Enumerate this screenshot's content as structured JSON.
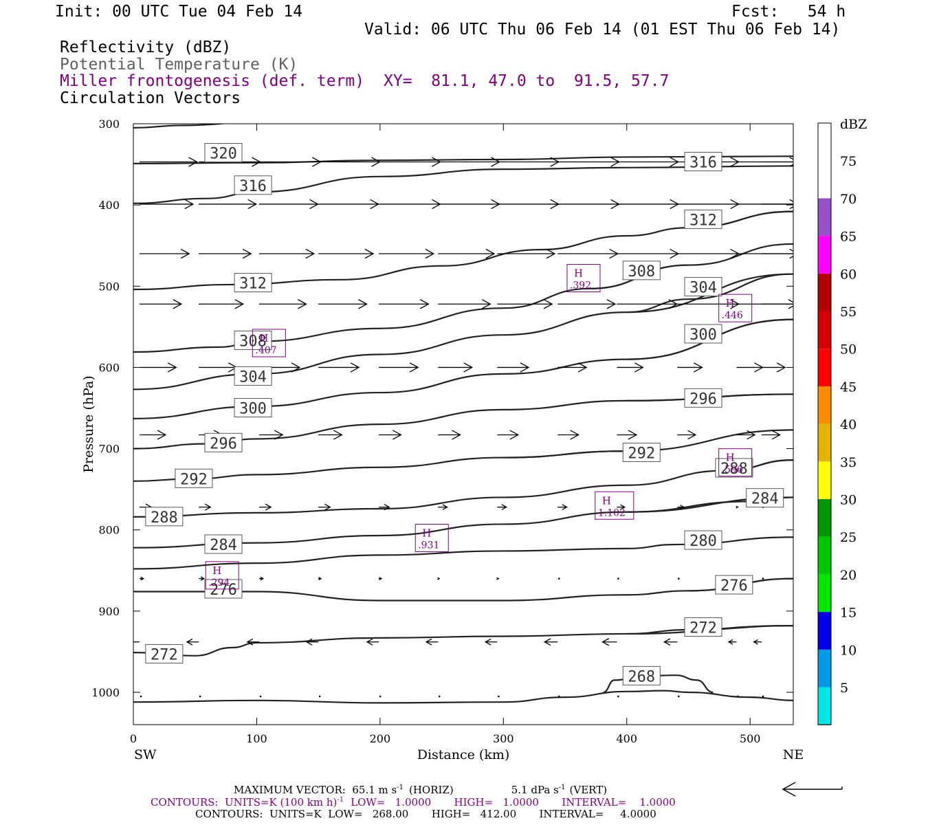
{
  "header": {
    "init": "Init: 00 UTC Tue 04 Feb 14",
    "fcst": "Fcst:   54 h",
    "valid": "Valid: 06 UTC Thu 06 Feb 14 (01 EST Thu 06 Feb 14)",
    "field1": "Reflectivity (dBZ)",
    "field2": "Potential Temperature (K)",
    "field3": "Miller frontogenesis (def. term)",
    "xy": "XY=  81.1, 47.0 to  91.5, 57.7",
    "field4": "Circulation Vectors"
  },
  "footer": {
    "max_vector_pre": "MAXIMUM VECTOR:  65.1 m s",
    "max_vector_hz": "(HORIZ)",
    "vert_pre": "5.1 dPa s",
    "vert_suf": "(VERT)",
    "sup": "-1",
    "contours1_pre": "CONTOURS:  UNITS=K (100 km h)",
    "contours1_post": "LOW=   1.0000       HIGH=   1.0000       INTERVAL=    1.0000",
    "contours2": "CONTOURS:  UNITS=K  LOW=   268.00       HIGH=   412.00       INTERVAL=     4.0000"
  },
  "colors": {
    "purple": "#800080",
    "contour": "#222222",
    "vector": "#000000"
  },
  "chart_data": {
    "type": "cross-section",
    "xlabel": "Distance (km)",
    "ylabel": "Pressure (hPa)",
    "xlim": [
      0,
      535
    ],
    "ylim": [
      1040,
      300
    ],
    "x_ticks": [
      0,
      100,
      200,
      300,
      400,
      500
    ],
    "y_ticks": [
      300,
      400,
      500,
      600,
      700,
      800,
      900,
      1000
    ],
    "left_end": "SW",
    "right_end": "NE",
    "colorbar": {
      "title": "dBZ",
      "labels": [
        "5",
        "10",
        "15",
        "20",
        "25",
        "30",
        "35",
        "40",
        "45",
        "50",
        "55",
        "60",
        "65",
        "70",
        "75"
      ],
      "colors": [
        "#00e6e6",
        "#0099e6",
        "#0000e6",
        "#00e600",
        "#00c800",
        "#009600",
        "#ffff00",
        "#e6b400",
        "#ff8c00",
        "#ff0000",
        "#d20000",
        "#b40000",
        "#ff00ff",
        "#9650c8",
        "#ffffff"
      ]
    },
    "theta_contours": [
      {
        "label": "320",
        "points": [
          [
            0,
            305
          ],
          [
            40,
            302
          ],
          [
            100,
            298
          ],
          [
            200,
            290
          ],
          [
            300,
            285
          ],
          [
            400,
            284
          ],
          [
            535,
            284
          ]
        ],
        "label_at": [
          73,
          336
        ]
      },
      {
        "label": "316",
        "points": [
          [
            0,
            398
          ],
          [
            60,
            392
          ],
          [
            100,
            384
          ],
          [
            200,
            365
          ],
          [
            300,
            356
          ],
          [
            400,
            354
          ],
          [
            535,
            352
          ]
        ],
        "label_at": [
          97,
          376
        ]
      },
      {
        "label": "316",
        "points": [
          [
            0,
            349
          ],
          [
            100,
            348
          ],
          [
            200,
            345
          ],
          [
            300,
            344
          ],
          [
            400,
            341
          ],
          [
            535,
            340
          ]
        ],
        "label_at": [
          462,
          347
        ]
      },
      {
        "label": "312",
        "points": [
          [
            0,
            504
          ],
          [
            80,
            498
          ],
          [
            168,
            492
          ],
          [
            250,
            475
          ],
          [
            330,
            455
          ],
          [
            400,
            438
          ],
          [
            450,
            428
          ],
          [
            535,
            408
          ]
        ],
        "label_at": [
          97,
          496
        ]
      },
      {
        "label": "312",
        "points": [
          [
            450,
            428
          ],
          [
            535,
            408
          ]
        ],
        "label_at": [
          462,
          418
        ]
      },
      {
        "label": "308",
        "points": [
          [
            0,
            581
          ],
          [
            70,
            575
          ],
          [
            100,
            568
          ],
          [
            200,
            552
          ],
          [
            300,
            527
          ],
          [
            370,
            503
          ],
          [
            450,
            474
          ],
          [
            535,
            448
          ]
        ],
        "label_at": [
          97,
          567
        ]
      },
      {
        "label": "308",
        "points": [
          [
            370,
            503
          ],
          [
            450,
            474
          ]
        ],
        "label_at": [
          412,
          481
        ]
      },
      {
        "label": "304",
        "points": [
          [
            0,
            627
          ],
          [
            100,
            608
          ],
          [
            200,
            584
          ],
          [
            300,
            560
          ],
          [
            400,
            532
          ],
          [
            450,
            516
          ],
          [
            535,
            485
          ]
        ],
        "label_at": [
          97,
          611
        ]
      },
      {
        "label": "304",
        "points": [
          [
            400,
            532
          ],
          [
            535,
            485
          ]
        ],
        "label_at": [
          462,
          501
        ]
      },
      {
        "label": "300",
        "points": [
          [
            0,
            663
          ],
          [
            100,
            648
          ],
          [
            200,
            631
          ],
          [
            300,
            608
          ],
          [
            400,
            590
          ],
          [
            535,
            541
          ]
        ],
        "label_at": [
          97,
          650
        ]
      },
      {
        "label": "300",
        "points": [
          [
            400,
            590
          ],
          [
            535,
            541
          ]
        ],
        "label_at": [
          462,
          559
        ]
      },
      {
        "label": "296",
        "points": [
          [
            0,
            700
          ],
          [
            60,
            694
          ],
          [
            100,
            688
          ],
          [
            200,
            670
          ],
          [
            300,
            652
          ],
          [
            400,
            641
          ],
          [
            535,
            633
          ]
        ],
        "label_at": [
          73,
          693
        ]
      },
      {
        "label": "296",
        "points": [
          [
            400,
            641
          ],
          [
            535,
            633
          ]
        ],
        "label_at": [
          462,
          638
        ]
      },
      {
        "label": "292",
        "points": [
          [
            0,
            740
          ],
          [
            50,
            737
          ],
          [
            100,
            732
          ],
          [
            200,
            723
          ],
          [
            300,
            711
          ],
          [
            400,
            703
          ],
          [
            535,
            677
          ]
        ],
        "label_at": [
          49,
          737
        ]
      },
      {
        "label": "292",
        "points": [
          [
            300,
            711
          ],
          [
            400,
            703
          ]
        ],
        "label_at": [
          412,
          705
        ]
      },
      {
        "label": "288",
        "points": [
          [
            0,
            784
          ],
          [
            100,
            779
          ],
          [
            200,
            774
          ],
          [
            300,
            760
          ],
          [
            400,
            745
          ],
          [
            480,
            727
          ],
          [
            535,
            714
          ]
        ],
        "label_at": [
          25,
          784
        ]
      },
      {
        "label": "288",
        "points": [
          [
            480,
            727
          ],
          [
            535,
            714
          ]
        ],
        "label_at": [
          487,
          724
        ]
      },
      {
        "label": "284",
        "points": [
          [
            0,
            822
          ],
          [
            100,
            816
          ],
          [
            200,
            807
          ],
          [
            300,
            793
          ],
          [
            400,
            778
          ],
          [
            500,
            765
          ],
          [
            535,
            760
          ]
        ],
        "label_at": [
          73,
          818
        ]
      },
      {
        "label": "284",
        "points": [
          [
            400,
            778
          ],
          [
            535,
            760
          ]
        ],
        "label_at": [
          512,
          761
        ]
      },
      {
        "label": "280",
        "points": [
          [
            0,
            848
          ],
          [
            100,
            841
          ],
          [
            200,
            831
          ],
          [
            300,
            826
          ],
          [
            400,
            823
          ],
          [
            440,
            818
          ],
          [
            535,
            809
          ]
        ],
        "label_at": [
          462,
          813
        ]
      },
      {
        "label": "276",
        "points": [
          [
            0,
            876
          ],
          [
            100,
            876
          ],
          [
            200,
            887
          ],
          [
            300,
            887
          ],
          [
            400,
            880
          ],
          [
            450,
            875
          ],
          [
            535,
            860
          ]
        ],
        "label_at": [
          73,
          873
        ]
      },
      {
        "label": "276",
        "points": [
          [
            450,
            875
          ],
          [
            535,
            860
          ]
        ],
        "label_at": [
          487,
          868
        ]
      },
      {
        "label": "272",
        "points": [
          [
            0,
            951
          ],
          [
            50,
            955
          ],
          [
            80,
            945
          ],
          [
            100,
            939
          ],
          [
            200,
            933
          ],
          [
            300,
            931
          ],
          [
            400,
            928
          ],
          [
            450,
            923
          ],
          [
            535,
            918
          ]
        ],
        "label_at": [
          25,
          953
        ]
      },
      {
        "label": "272",
        "points": [
          [
            400,
            928
          ],
          [
            535,
            918
          ]
        ],
        "label_at": [
          462,
          920
        ]
      },
      {
        "label": "268",
        "points": [
          [
            381,
            1000
          ],
          [
            390,
            985
          ],
          [
            412,
            980
          ],
          [
            440,
            979
          ],
          [
            457,
            985
          ],
          [
            470,
            1000
          ]
        ],
        "label_at": [
          412,
          980
        ]
      },
      {
        "label": "",
        "points": [
          [
            0,
            1012
          ],
          [
            100,
            1010
          ],
          [
            200,
            1013
          ],
          [
            300,
            1012
          ],
          [
            350,
            1006
          ],
          [
            400,
            999
          ],
          [
            430,
            998
          ],
          [
            450,
            1000
          ],
          [
            500,
            1006
          ],
          [
            535,
            1010
          ]
        ],
        "label_at": null
      }
    ],
    "frontogenesis_maxima": [
      {
        "label": "H",
        "value": ".407",
        "x": 110,
        "p": 570
      },
      {
        "label": "H",
        "value": ".392",
        "x": 365,
        "p": 490
      },
      {
        "label": "H",
        "value": ".446",
        "x": 488,
        "p": 527
      },
      {
        "label": "H",
        "value": ".596",
        "x": 488,
        "p": 717
      },
      {
        "label": "H",
        "value": "1.102",
        "x": 390,
        "p": 770
      },
      {
        "label": "H",
        "value": ".931",
        "x": 242,
        "p": 810
      },
      {
        "label": "H",
        "value": ".294",
        "x": 72,
        "p": 856
      }
    ],
    "vectors": {
      "rows": [
        {
          "p": 347,
          "u": [
            44,
            47,
            47,
            47,
            47,
            47,
            47,
            47,
            47,
            47,
            47,
            47
          ]
        },
        {
          "p": 399,
          "u": [
            41,
            44,
            45,
            46,
            47,
            47,
            47,
            47,
            47,
            47,
            47,
            45
          ]
        },
        {
          "p": 460,
          "u": [
            38,
            40,
            42,
            42,
            42,
            43,
            44,
            46,
            47,
            47,
            47,
            43
          ]
        },
        {
          "p": 522,
          "u": [
            32,
            34,
            36,
            37,
            38,
            40,
            42,
            44,
            46,
            47,
            46,
            33
          ]
        },
        {
          "p": 600,
          "u": [
            28,
            29,
            31,
            31,
            30,
            26,
            24,
            22,
            20,
            19,
            20,
            18
          ]
        },
        {
          "p": 683,
          "u": [
            20,
            18,
            18,
            18,
            17,
            17,
            16,
            16,
            15,
            14,
            14,
            14
          ]
        },
        {
          "p": 772,
          "u": [
            9,
            9,
            9,
            9,
            8,
            7,
            7,
            7,
            6,
            5,
            1,
            0
          ]
        },
        {
          "p": 860,
          "u": [
            3,
            4,
            3,
            2,
            2,
            1,
            1,
            0,
            0,
            0,
            0,
            0
          ]
        },
        {
          "p": 938,
          "u": [
            -9,
            -9,
            -9,
            -9,
            -9,
            -9,
            -9,
            -10,
            -11,
            -10,
            -6,
            -6
          ]
        },
        {
          "p": 1005,
          "u": [
            0,
            0,
            0,
            0,
            0,
            0,
            0,
            0,
            0,
            0,
            0,
            0
          ]
        }
      ],
      "x": [
        5,
        53,
        102,
        150,
        199,
        247,
        295,
        344,
        392,
        441,
        489,
        535
      ],
      "reference_vector": "65.1 m s-1"
    }
  }
}
